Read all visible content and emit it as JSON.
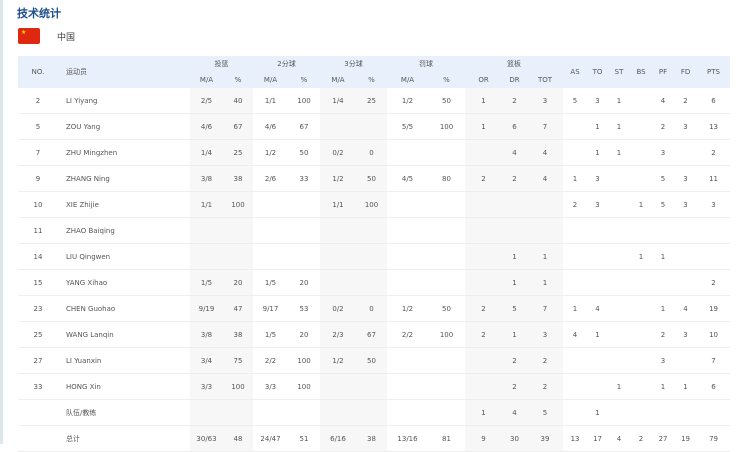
{
  "title": "技术统计",
  "team": {
    "name": "中国",
    "flag": "china-flag-icon",
    "flag_color": "#de2910"
  },
  "header": {
    "no": "NO.",
    "player": "运动员",
    "groups": [
      "投篮",
      "2分球",
      "3分球",
      "罚球",
      "篮板"
    ],
    "sub": [
      "M/A",
      "%",
      "M/A",
      "%",
      "M/A",
      "%",
      "M/A",
      "%",
      "OR",
      "DR",
      "TOT"
    ],
    "singles": [
      "AS",
      "TO",
      "ST",
      "BS",
      "PF",
      "FD",
      "PTS"
    ]
  },
  "rows": [
    [
      "2",
      "LI Yiyang",
      "2/5",
      "40",
      "1/1",
      "100",
      "1/4",
      "25",
      "1/2",
      "50",
      "1",
      "2",
      "3",
      "5",
      "3",
      "1",
      "",
      "4",
      "2",
      "6"
    ],
    [
      "5",
      "ZOU Yang",
      "4/6",
      "67",
      "4/6",
      "67",
      "",
      "",
      "5/5",
      "100",
      "1",
      "6",
      "7",
      "",
      "1",
      "1",
      "",
      "2",
      "3",
      "13"
    ],
    [
      "7",
      "ZHU Mingzhen",
      "1/4",
      "25",
      "1/2",
      "50",
      "0/2",
      "0",
      "",
      "",
      "",
      "4",
      "4",
      "",
      "1",
      "1",
      "",
      "3",
      "",
      "2"
    ],
    [
      "9",
      "ZHANG Ning",
      "3/8",
      "38",
      "2/6",
      "33",
      "1/2",
      "50",
      "4/5",
      "80",
      "2",
      "2",
      "4",
      "1",
      "3",
      "",
      "",
      "5",
      "3",
      "11"
    ],
    [
      "10",
      "XIE Zhijie",
      "1/1",
      "100",
      "",
      "",
      "1/1",
      "100",
      "",
      "",
      "",
      "",
      "",
      "2",
      "3",
      "",
      "1",
      "5",
      "3",
      "3"
    ],
    [
      "11",
      "ZHAO Baiqing",
      "",
      "",
      "",
      "",
      "",
      "",
      "",
      "",
      "",
      "",
      "",
      "",
      "",
      "",
      "",
      "",
      "",
      ""
    ],
    [
      "14",
      "LIU Qingwen",
      "",
      "",
      "",
      "",
      "",
      "",
      "",
      "",
      "",
      "1",
      "1",
      "",
      "",
      "",
      "1",
      "1",
      "",
      ""
    ],
    [
      "15",
      "YANG Xihao",
      "1/5",
      "20",
      "1/5",
      "20",
      "",
      "",
      "",
      "",
      "",
      "1",
      "1",
      "",
      "",
      "",
      "",
      "",
      "",
      "2"
    ],
    [
      "23",
      "CHEN Guohao",
      "9/19",
      "47",
      "9/17",
      "53",
      "0/2",
      "0",
      "1/2",
      "50",
      "2",
      "5",
      "7",
      "1",
      "4",
      "",
      "",
      "1",
      "4",
      "19"
    ],
    [
      "25",
      "WANG Lanqin",
      "3/8",
      "38",
      "1/5",
      "20",
      "2/3",
      "67",
      "2/2",
      "100",
      "2",
      "1",
      "3",
      "4",
      "1",
      "",
      "",
      "2",
      "3",
      "10"
    ],
    [
      "27",
      "LI Yuanxin",
      "3/4",
      "75",
      "2/2",
      "100",
      "1/2",
      "50",
      "",
      "",
      "",
      "2",
      "2",
      "",
      "",
      "",
      "",
      "3",
      "",
      "7"
    ],
    [
      "33",
      "HONG Xin",
      "3/3",
      "100",
      "3/3",
      "100",
      "",
      "",
      "",
      "",
      "",
      "2",
      "2",
      "",
      "",
      "1",
      "",
      "1",
      "1",
      "6"
    ],
    [
      "",
      "队伍/教练",
      "",
      "",
      "",
      "",
      "",
      "",
      "",
      "",
      "1",
      "4",
      "5",
      "",
      "1",
      "",
      "",
      "",
      "",
      ""
    ],
    [
      "",
      "总计",
      "30/63",
      "48",
      "24/47",
      "51",
      "6/16",
      "38",
      "13/16",
      "81",
      "9",
      "30",
      "39",
      "13",
      "17",
      "4",
      "2",
      "27",
      "19",
      "79"
    ]
  ]
}
